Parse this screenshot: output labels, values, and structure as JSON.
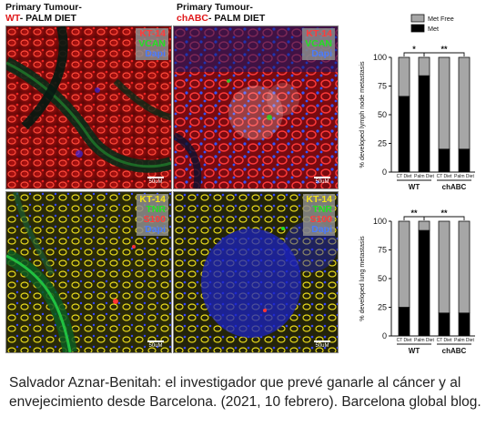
{
  "figure": {
    "col_titles": [
      {
        "line1": "Primary Tumour-",
        "highlight": "WT",
        "rest": "- PALM DIET"
      },
      {
        "line1": "Primary Tumour-",
        "highlight": "chABC",
        "rest": "- PALM DIET"
      }
    ],
    "panels": [
      {
        "stains": [
          "KT-14",
          "VCAN",
          "Dapi"
        ],
        "stain_colors": [
          "#ff3b3b",
          "#22e022",
          "#4a7bff"
        ],
        "scale": "50uM"
      },
      {
        "stains": [
          "KT-14",
          "VCAN",
          "Dapi"
        ],
        "stain_colors": [
          "#ff3b3b",
          "#22e022",
          "#4a7bff"
        ],
        "scale": "50uM"
      },
      {
        "stains": [
          "KT-14",
          "TNR",
          "S100",
          "Dapi"
        ],
        "stain_colors": [
          "#f2e21a",
          "#22e022",
          "#ff3b3b",
          "#4a7bff"
        ],
        "scale": "50uM"
      },
      {
        "stains": [
          "KT-14",
          "TNR",
          "S100",
          "Dapi"
        ],
        "stain_colors": [
          "#f2e21a",
          "#22e022",
          "#ff3b3b",
          "#4a7bff"
        ],
        "scale": "50uM"
      }
    ]
  },
  "chart_data": [
    {
      "type": "bar",
      "stacked": true,
      "ylabel": "% developed lymph node metastasis",
      "ylim": [
        0,
        100
      ],
      "yticks": [
        0,
        25,
        50,
        75,
        100
      ],
      "categories": [
        "CT Diet",
        "Palm Diet",
        "CT Diet",
        "Palm Diet"
      ],
      "groups": [
        {
          "label": "WT",
          "span": [
            0,
            1
          ]
        },
        {
          "label": "chABC",
          "span": [
            2,
            3
          ]
        }
      ],
      "series": [
        {
          "name": "Met",
          "color": "#000000",
          "values": [
            66,
            84,
            20,
            20
          ]
        },
        {
          "name": "Met Free",
          "color": "#a6a6a6",
          "values": [
            34,
            16,
            80,
            80
          ]
        }
      ],
      "legend": "top",
      "significance": [
        {
          "pair": [
            0,
            1
          ],
          "label": "*"
        },
        {
          "pair": [
            1,
            3
          ],
          "label": "**"
        }
      ]
    },
    {
      "type": "bar",
      "stacked": true,
      "ylabel": "% developed lung metastasis",
      "ylim": [
        0,
        100
      ],
      "yticks": [
        0,
        25,
        50,
        75,
        100
      ],
      "categories": [
        "CT Diet",
        "Palm Diet",
        "CT Diet",
        "Palm Diet"
      ],
      "groups": [
        {
          "label": "WT",
          "span": [
            0,
            1
          ]
        },
        {
          "label": "chABC",
          "span": [
            2,
            3
          ]
        }
      ],
      "series": [
        {
          "name": "Met",
          "color": "#000000",
          "values": [
            25,
            92,
            20,
            20
          ]
        },
        {
          "name": "Met Free",
          "color": "#a6a6a6",
          "values": [
            75,
            8,
            80,
            80
          ]
        }
      ],
      "significance": [
        {
          "pair": [
            0,
            1
          ],
          "label": "**"
        },
        {
          "pair": [
            1,
            3
          ],
          "label": "**"
        }
      ]
    }
  ],
  "caption": "Salvador Aznar-Benitah: el investigador que prevé ganarle al cáncer y al envejecimiento desde Barcelona. (2021, 10 febrero). Barcelona global blog."
}
